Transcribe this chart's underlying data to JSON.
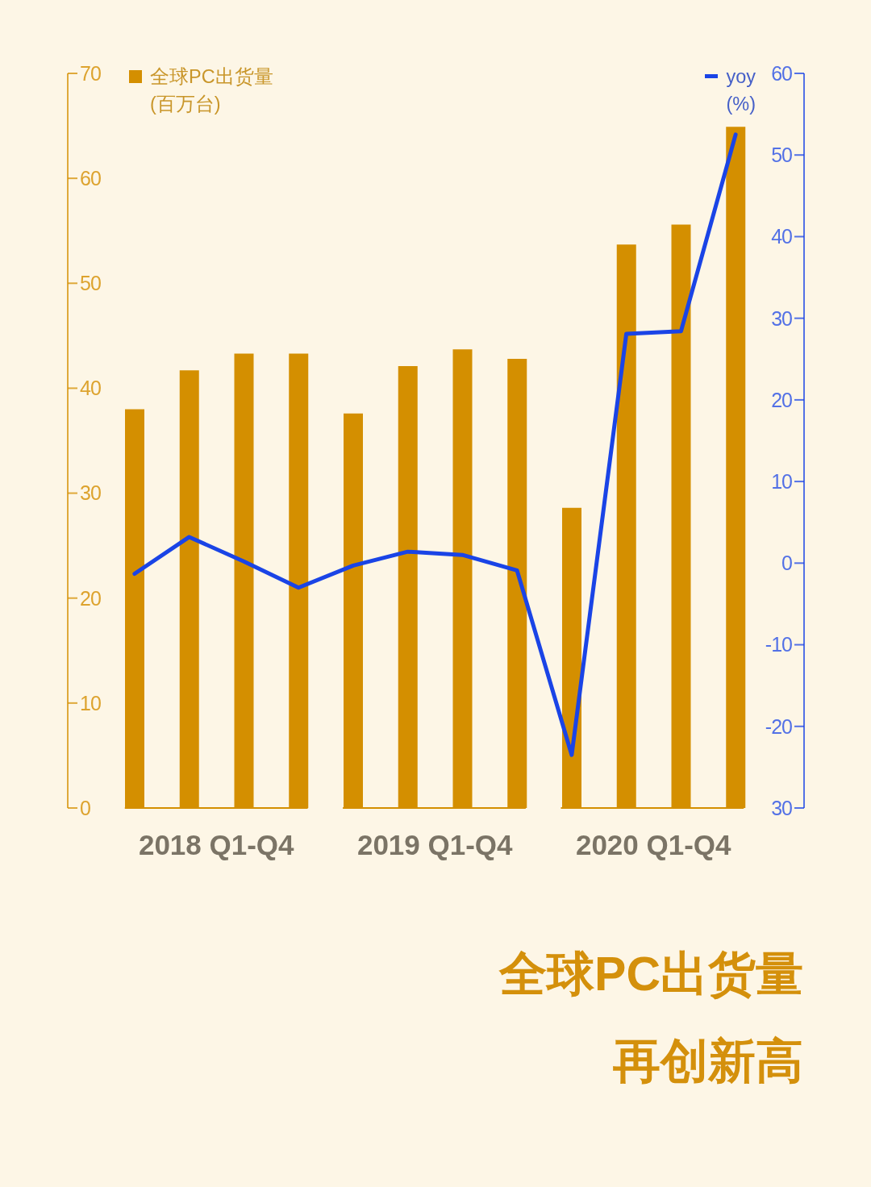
{
  "chart_data": {
    "type": "bar",
    "title": "全球PC出货量",
    "subtitle": "再创新高",
    "categories": [
      null,
      null,
      null,
      null,
      null,
      null,
      null,
      null,
      null,
      null,
      null,
      null
    ],
    "annotations": [
      "2018 Q1-Q4",
      "2019 Q1-Q4",
      "2020 Q1-Q4"
    ],
    "series": [
      {
        "name": "全球PC出货量 (百万台)",
        "color": "#d48f00",
        "values": [
          38.0,
          41.7,
          43.3,
          43.3,
          37.6,
          42.1,
          43.7,
          42.8,
          28.6,
          53.7,
          55.6,
          64.9
        ]
      },
      {
        "name": "yoy (%)",
        "type": "line",
        "axis": "y2",
        "color": "#1a44e6",
        "values": [
          -1.3,
          3.2,
          0.2,
          -3.0,
          -0.3,
          1.4,
          1.0,
          -0.9,
          -23.5,
          28.1,
          28.4,
          52.5
        ]
      }
    ],
    "ylim": [
      0,
      70
    ],
    "yticks": [
      0,
      10,
      20,
      30,
      40,
      50,
      60,
      70
    ],
    "y2lim": [
      -30,
      60
    ],
    "y2ticks": [
      {
        "value": -30,
        "label": "30"
      },
      -20,
      -10,
      0,
      10,
      20,
      30,
      40,
      50,
      60
    ],
    "legend": "top",
    "marker": "none"
  }
}
